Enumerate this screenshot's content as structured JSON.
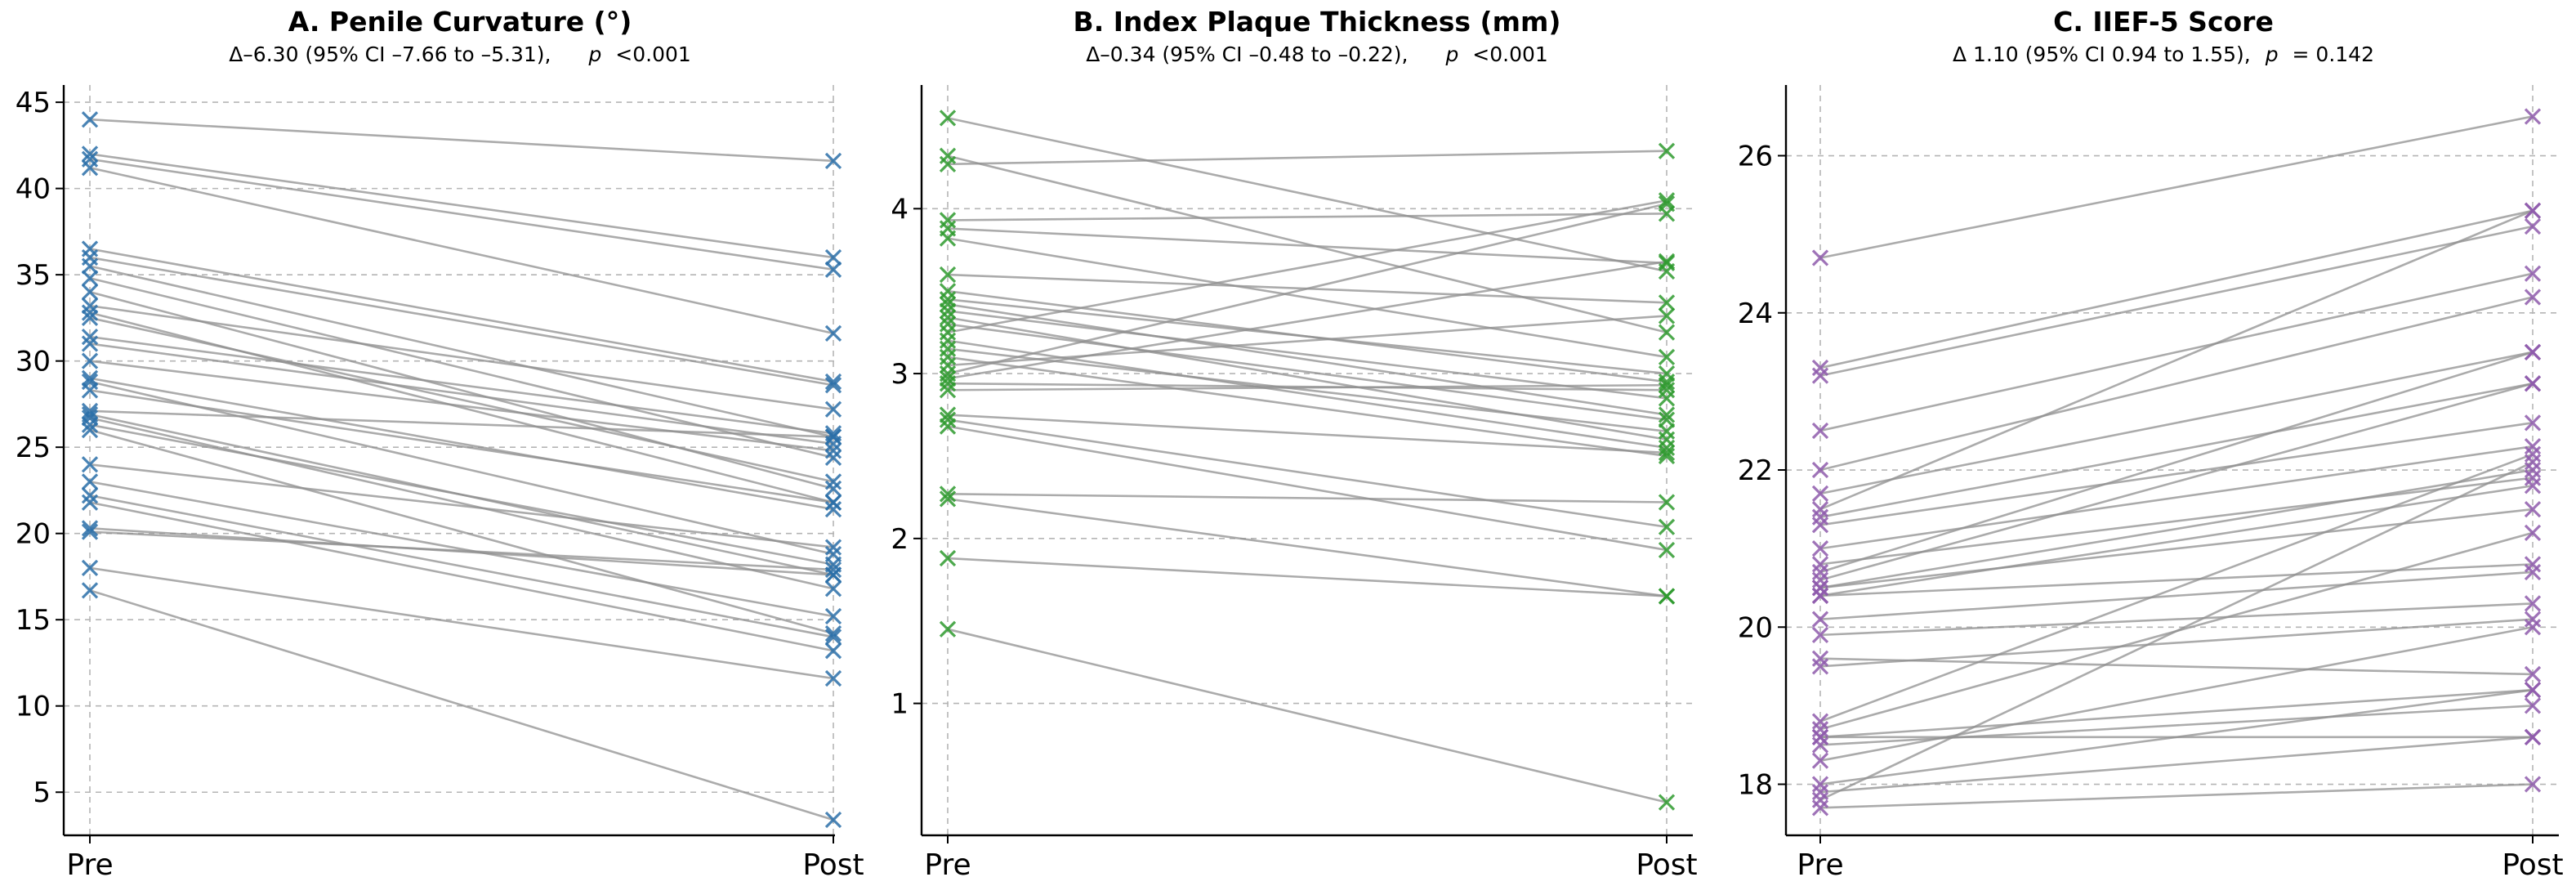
{
  "chart_data": [
    {
      "type": "line",
      "title": "A. Penile Curvature (°)",
      "subtitle": {
        "delta": "Δ–6.30 (95% CI –7.66 to –5.31),",
        "p_label": "p",
        "p_value": "<0.001"
      },
      "categories": [
        "Pre",
        "Post"
      ],
      "ylim": [
        2.5,
        46
      ],
      "yticks": [
        5,
        10,
        15,
        20,
        25,
        30,
        35,
        40,
        45
      ],
      "grid": true,
      "marker": "x",
      "color": "#2a6fa8",
      "pairs": [
        [
          44.0,
          41.6
        ],
        [
          42.0,
          36.0
        ],
        [
          41.7,
          35.3
        ],
        [
          41.2,
          31.6
        ],
        [
          36.5,
          28.8
        ],
        [
          36.0,
          28.6
        ],
        [
          35.5,
          25.6
        ],
        [
          34.8,
          24.4
        ],
        [
          34.0,
          22.6
        ],
        [
          33.2,
          27.2
        ],
        [
          32.8,
          21.8
        ],
        [
          32.5,
          23.0
        ],
        [
          31.4,
          25.8
        ],
        [
          31.0,
          25.2
        ],
        [
          30.0,
          24.8
        ],
        [
          29.0,
          21.4
        ],
        [
          28.8,
          18.8
        ],
        [
          28.3,
          21.8
        ],
        [
          27.1,
          25.6
        ],
        [
          26.9,
          17.6
        ],
        [
          26.7,
          16.8
        ],
        [
          26.3,
          18.2
        ],
        [
          26.0,
          14.2
        ],
        [
          24.0,
          19.2
        ],
        [
          23.0,
          15.2
        ],
        [
          22.2,
          14.0
        ],
        [
          21.8,
          13.2
        ],
        [
          20.3,
          17.6
        ],
        [
          20.1,
          17.9
        ],
        [
          18.0,
          11.6
        ],
        [
          16.7,
          3.4
        ]
      ]
    },
    {
      "type": "line",
      "title": "B. Index Plaque Thickness (mm)",
      "subtitle": {
        "delta": "Δ–0.34 (95% CI –0.48 to –0.22),",
        "p_label": "p",
        "p_value": "<0.001"
      },
      "categories": [
        "Pre",
        "Post"
      ],
      "ylim": [
        0.2,
        4.75
      ],
      "yticks": [
        1,
        2,
        3,
        4
      ],
      "grid": true,
      "marker": "x",
      "color": "#2e9a2e",
      "pairs": [
        [
          4.55,
          3.62
        ],
        [
          4.32,
          3.25
        ],
        [
          4.27,
          4.35
        ],
        [
          3.93,
          3.97
        ],
        [
          3.88,
          3.67
        ],
        [
          3.82,
          3.1
        ],
        [
          3.6,
          3.43
        ],
        [
          3.5,
          2.95
        ],
        [
          3.45,
          3.0
        ],
        [
          3.42,
          2.75
        ],
        [
          3.38,
          2.85
        ],
        [
          3.34,
          2.6
        ],
        [
          3.3,
          2.72
        ],
        [
          3.25,
          4.05
        ],
        [
          3.2,
          2.55
        ],
        [
          3.15,
          2.65
        ],
        [
          3.1,
          2.5
        ],
        [
          3.05,
          3.35
        ],
        [
          3.0,
          4.03
        ],
        [
          2.97,
          3.68
        ],
        [
          2.94,
          2.9
        ],
        [
          2.9,
          2.93
        ],
        [
          2.75,
          2.52
        ],
        [
          2.72,
          2.07
        ],
        [
          2.68,
          1.93
        ],
        [
          2.27,
          2.22
        ],
        [
          2.24,
          1.65
        ],
        [
          1.88,
          1.65
        ],
        [
          1.45,
          0.4
        ]
      ]
    },
    {
      "type": "line",
      "title": "C. IIEF-5 Score",
      "subtitle": {
        "delta": "Δ 1.10 (95% CI 0.94 to 1.55),",
        "p_label": "p",
        "p_value": "= 0.142"
      },
      "categories": [
        "Pre",
        "Post"
      ],
      "ylim": [
        17.35,
        26.9
      ],
      "yticks": [
        18,
        20,
        22,
        24,
        26
      ],
      "grid": true,
      "marker": "x",
      "color": "#8e5aac",
      "pairs": [
        [
          24.7,
          26.5
        ],
        [
          23.3,
          25.3
        ],
        [
          23.2,
          25.1
        ],
        [
          22.5,
          24.5
        ],
        [
          22.0,
          24.2
        ],
        [
          21.7,
          23.5
        ],
        [
          21.4,
          23.1
        ],
        [
          21.3,
          22.6
        ],
        [
          21.0,
          22.3
        ],
        [
          20.8,
          21.9
        ],
        [
          20.7,
          23.5
        ],
        [
          20.6,
          23.1
        ],
        [
          20.5,
          22.0
        ],
        [
          20.5,
          21.5
        ],
        [
          20.4,
          21.8
        ],
        [
          20.4,
          20.8
        ],
        [
          20.1,
          20.7
        ],
        [
          19.9,
          20.3
        ],
        [
          19.6,
          19.4
        ],
        [
          19.5,
          20.1
        ],
        [
          18.8,
          22.2
        ],
        [
          18.7,
          21.2
        ],
        [
          18.6,
          19.2
        ],
        [
          18.5,
          19.0
        ],
        [
          18.3,
          20.0
        ],
        [
          17.9,
          18.6
        ],
        [
          17.8,
          22.1
        ],
        [
          17.7,
          18.0
        ],
        [
          18.0,
          19.2
        ],
        [
          18.6,
          18.6
        ],
        [
          21.5,
          25.3
        ]
      ]
    }
  ]
}
